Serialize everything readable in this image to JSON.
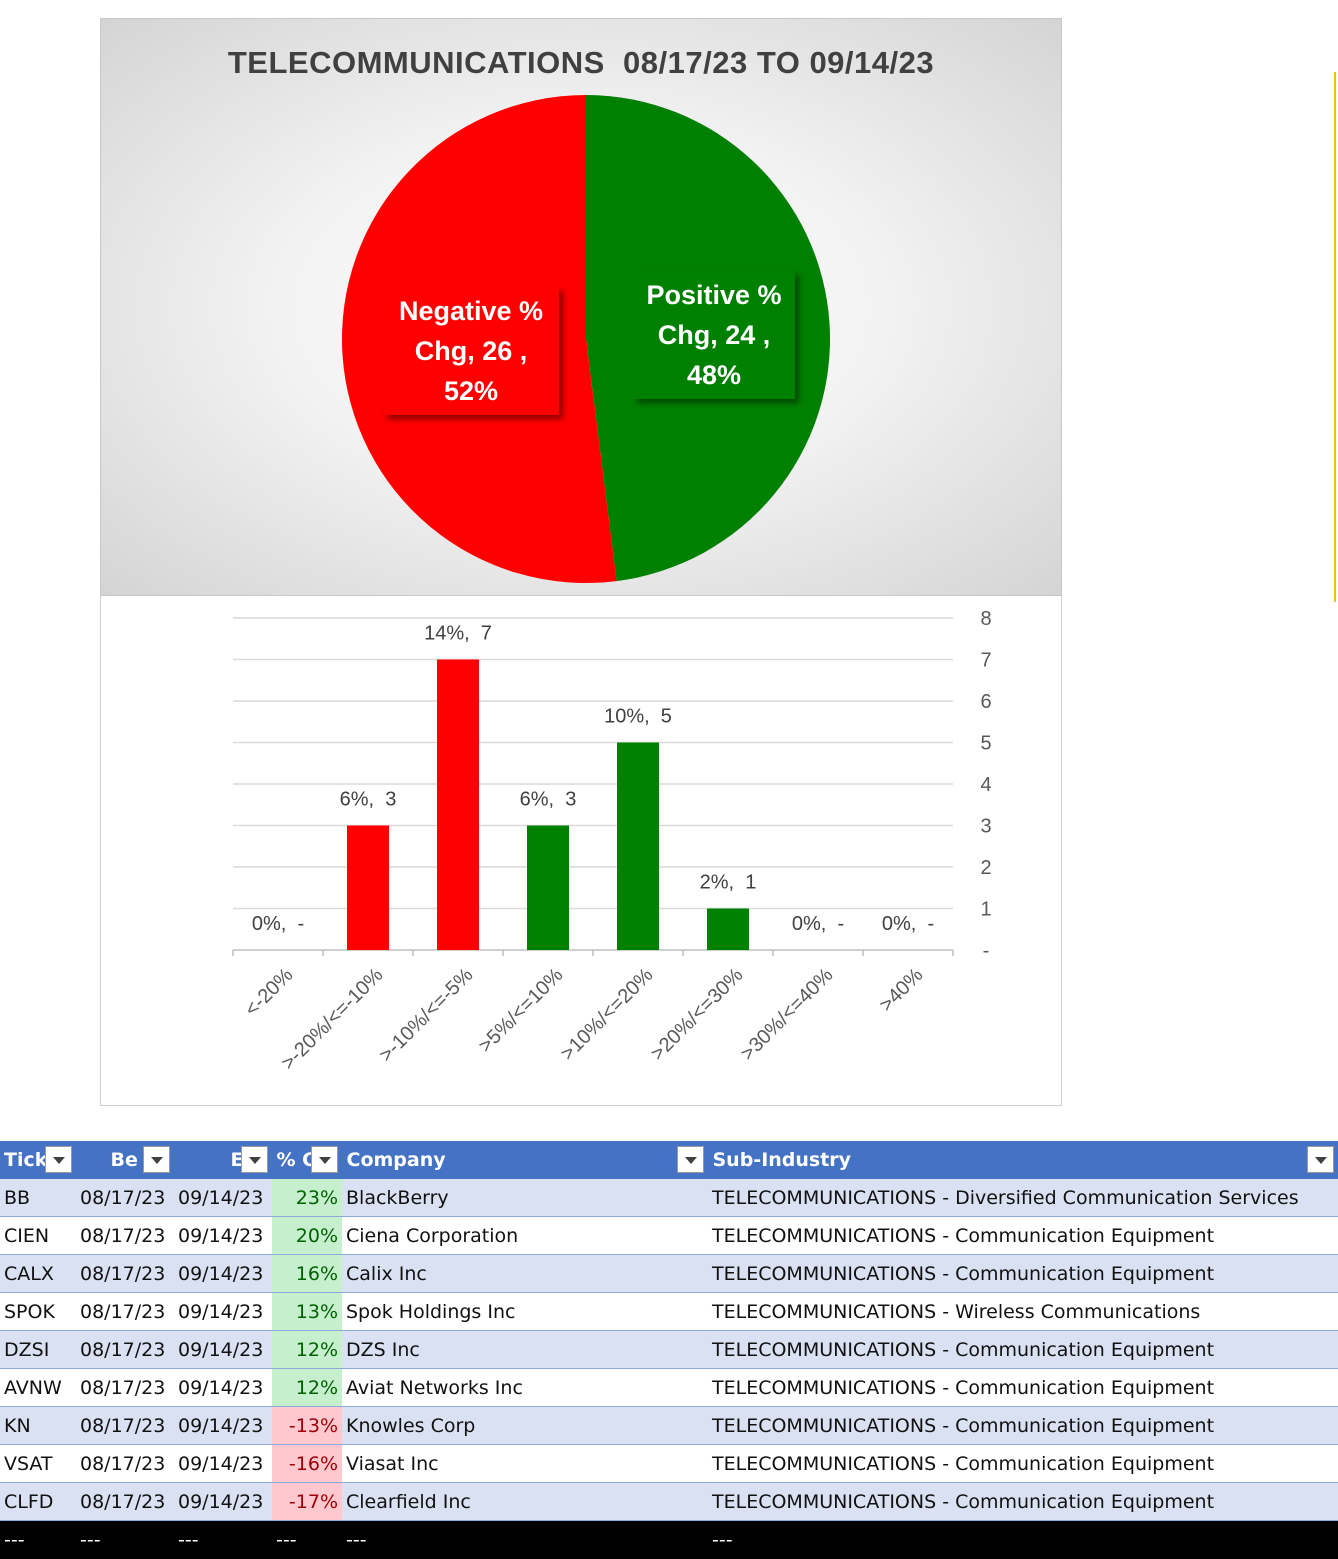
{
  "chart_data": [
    {
      "type": "pie",
      "title": "TELECOMMUNICATIONS  08/17/23 TO 09/14/23",
      "slices": [
        {
          "label_lines": [
            "Positive %",
            "Chg,  24 ,",
            "48%"
          ],
          "name": "Positive % Chg",
          "value": 24,
          "percent": 48,
          "color": "#008000"
        },
        {
          "label_lines": [
            "Negative %",
            "Chg,  26 ,",
            "52%"
          ],
          "name": "Negative % Chg",
          "value": 26,
          "percent": 52,
          "color": "#ff0000"
        }
      ]
    },
    {
      "type": "bar",
      "categories": [
        "<-20%",
        ">-20%/<=-10%",
        ">-10%/<=-5%",
        ">5%/<=10%",
        ">10%/<=20%",
        ">20%/<=30%",
        ">30%/<=40%",
        ">40%"
      ],
      "values": [
        0,
        3,
        7,
        3,
        5,
        1,
        0,
        0
      ],
      "data_labels": [
        "0%,  -",
        "6%,  3",
        "14%,  7",
        "6%,  3",
        "10%,  5",
        "2%,  1",
        "0%,  -",
        "0%,  -"
      ],
      "colors": [
        "#ff0000",
        "#ff0000",
        "#ff0000",
        "#008000",
        "#008000",
        "#008000",
        "#008000",
        "#008000"
      ],
      "yticks": [
        "-",
        "1",
        "2",
        "3",
        "4",
        "5",
        "6",
        "7",
        "8"
      ],
      "ylim": [
        0,
        8
      ],
      "yaxis_side": "right",
      "grid": true
    }
  ],
  "table": {
    "headers": [
      "Tick",
      "Be",
      "E",
      "% C",
      "Company",
      "Sub-Industry"
    ],
    "rows": [
      {
        "ticker": "BB",
        "begin": "08/17/23",
        "end": "09/14/23",
        "pct": "23%",
        "sign": "pos",
        "company": "BlackBerry",
        "sub": "TELECOMMUNICATIONS - Diversified Communication Services"
      },
      {
        "ticker": "CIEN",
        "begin": "08/17/23",
        "end": "09/14/23",
        "pct": "20%",
        "sign": "pos",
        "company": "Ciena Corporation",
        "sub": "TELECOMMUNICATIONS - Communication Equipment"
      },
      {
        "ticker": "CALX",
        "begin": "08/17/23",
        "end": "09/14/23",
        "pct": "16%",
        "sign": "pos",
        "company": "Calix Inc",
        "sub": "TELECOMMUNICATIONS - Communication Equipment"
      },
      {
        "ticker": "SPOK",
        "begin": "08/17/23",
        "end": "09/14/23",
        "pct": "13%",
        "sign": "pos",
        "company": "Spok Holdings Inc",
        "sub": "TELECOMMUNICATIONS - Wireless Communications"
      },
      {
        "ticker": "DZSI",
        "begin": "08/17/23",
        "end": "09/14/23",
        "pct": "12%",
        "sign": "pos",
        "company": "DZS Inc",
        "sub": "TELECOMMUNICATIONS - Communication Equipment"
      },
      {
        "ticker": "AVNW",
        "begin": "08/17/23",
        "end": "09/14/23",
        "pct": "12%",
        "sign": "pos",
        "company": "Aviat Networks Inc",
        "sub": "TELECOMMUNICATIONS - Communication Equipment"
      },
      {
        "ticker": "KN",
        "begin": "08/17/23",
        "end": "09/14/23",
        "pct": "-13%",
        "sign": "neg",
        "company": "Knowles Corp",
        "sub": "TELECOMMUNICATIONS - Communication Equipment"
      },
      {
        "ticker": "VSAT",
        "begin": "08/17/23",
        "end": "09/14/23",
        "pct": "-16%",
        "sign": "neg",
        "company": "Viasat Inc",
        "sub": "TELECOMMUNICATIONS - Communication Equipment"
      },
      {
        "ticker": "CLFD",
        "begin": "08/17/23",
        "end": "09/14/23",
        "pct": "-17%",
        "sign": "neg",
        "company": "Clearfield Inc",
        "sub": "TELECOMMUNICATIONS - Communication Equipment"
      }
    ],
    "total_row": [
      "---",
      "---",
      "---",
      "---",
      "---",
      "---"
    ]
  }
}
